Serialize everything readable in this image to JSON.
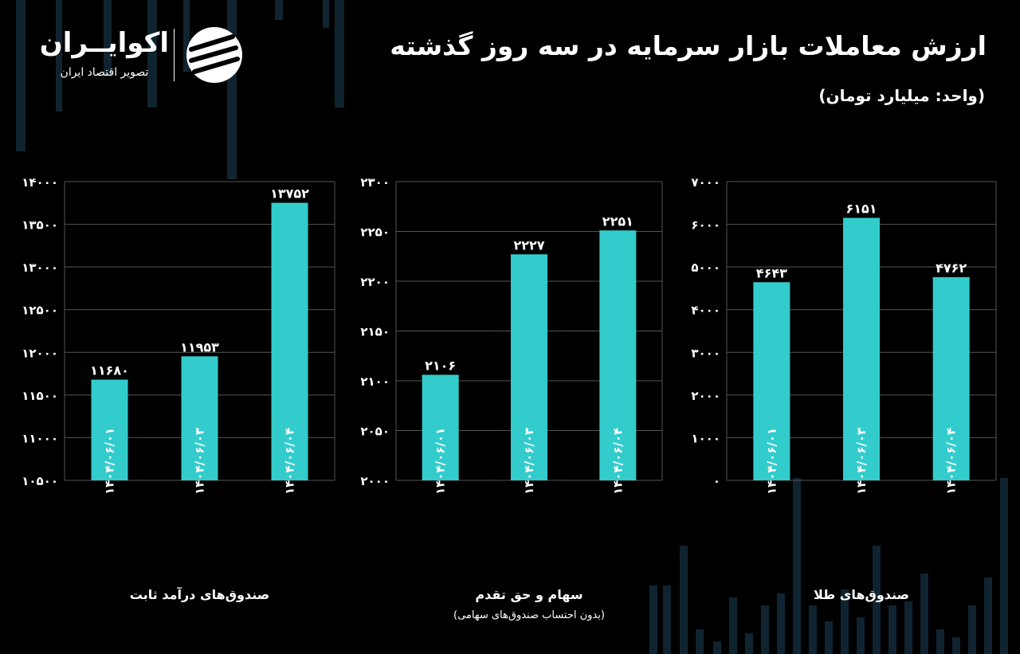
{
  "header": {
    "title": "ارزش معاملات بازار سرمایه در سه روز گذشته",
    "unit": "(واحد: میلیارد تومان)"
  },
  "logo": {
    "name": "اکوایــران",
    "tagline": "تصویر اقتصاد ایران"
  },
  "colors": {
    "bar": "#33CCCC",
    "background": "#000000",
    "grid": "#555555",
    "text": "#FFFFFF"
  },
  "chart_data": [
    {
      "type": "bar",
      "title": "صندوق‌های درآمد ثابت",
      "subtitle": "",
      "categories": [
        "۱۴۰۴/۰۶/۰۱",
        "۱۴۰۴/۰۶/۰۳",
        "۱۴۰۴/۰۶/۰۴"
      ],
      "values": [
        11680,
        11953,
        13752
      ],
      "value_labels": [
        "۱۱۶۸۰",
        "۱۱۹۵۳",
        "۱۳۷۵۲"
      ],
      "ylim": [
        10500,
        14000
      ],
      "yticks": [
        10500,
        11000,
        11500,
        12000,
        12500,
        13000,
        13500,
        14000
      ],
      "ytick_labels": [
        "۱۰۵۰۰",
        "۱۱۰۰۰",
        "۱۱۵۰۰",
        "۱۲۰۰۰",
        "۱۲۵۰۰",
        "۱۳۰۰۰",
        "۱۳۵۰۰",
        "۱۴۰۰۰"
      ],
      "grid": true,
      "legend": "none"
    },
    {
      "type": "bar",
      "title": "سهام و حق تقدم",
      "subtitle": "(بدون احتساب صندوق‌های سهامی)",
      "categories": [
        "۱۴۰۴/۰۶/۰۱",
        "۱۴۰۴/۰۶/۰۳",
        "۱۴۰۴/۰۶/۰۴"
      ],
      "values": [
        2106,
        2227,
        2251
      ],
      "value_labels": [
        "۲۱۰۶",
        "۲۲۲۷",
        "۲۲۵۱"
      ],
      "ylim": [
        2000,
        2300
      ],
      "yticks": [
        2000,
        2050,
        2100,
        2150,
        2200,
        2250,
        2300
      ],
      "ytick_labels": [
        "۲۰۰۰",
        "۲۰۵۰",
        "۲۱۰۰",
        "۲۱۵۰",
        "۲۲۰۰",
        "۲۲۵۰",
        "۲۳۰۰"
      ],
      "grid": true,
      "legend": "none"
    },
    {
      "type": "bar",
      "title": "صندوق‌های طلا",
      "subtitle": "",
      "categories": [
        "۱۴۰۴/۰۶/۰۱",
        "۱۴۰۴/۰۶/۰۳",
        "۱۴۰۴/۰۶/۰۴"
      ],
      "values": [
        4643,
        6151,
        4762
      ],
      "value_labels": [
        "۴۶۴۳",
        "۶۱۵۱",
        "۴۷۶۲"
      ],
      "ylim": [
        0,
        7000
      ],
      "yticks": [
        0,
        1000,
        2000,
        3000,
        4000,
        5000,
        6000,
        7000
      ],
      "ytick_labels": [
        "۰",
        "۱۰۰۰",
        "۲۰۰۰",
        "۳۰۰۰",
        "۴۰۰۰",
        "۵۰۰۰",
        "۶۰۰۰",
        "۷۰۰۰"
      ],
      "grid": true,
      "legend": "none"
    }
  ]
}
